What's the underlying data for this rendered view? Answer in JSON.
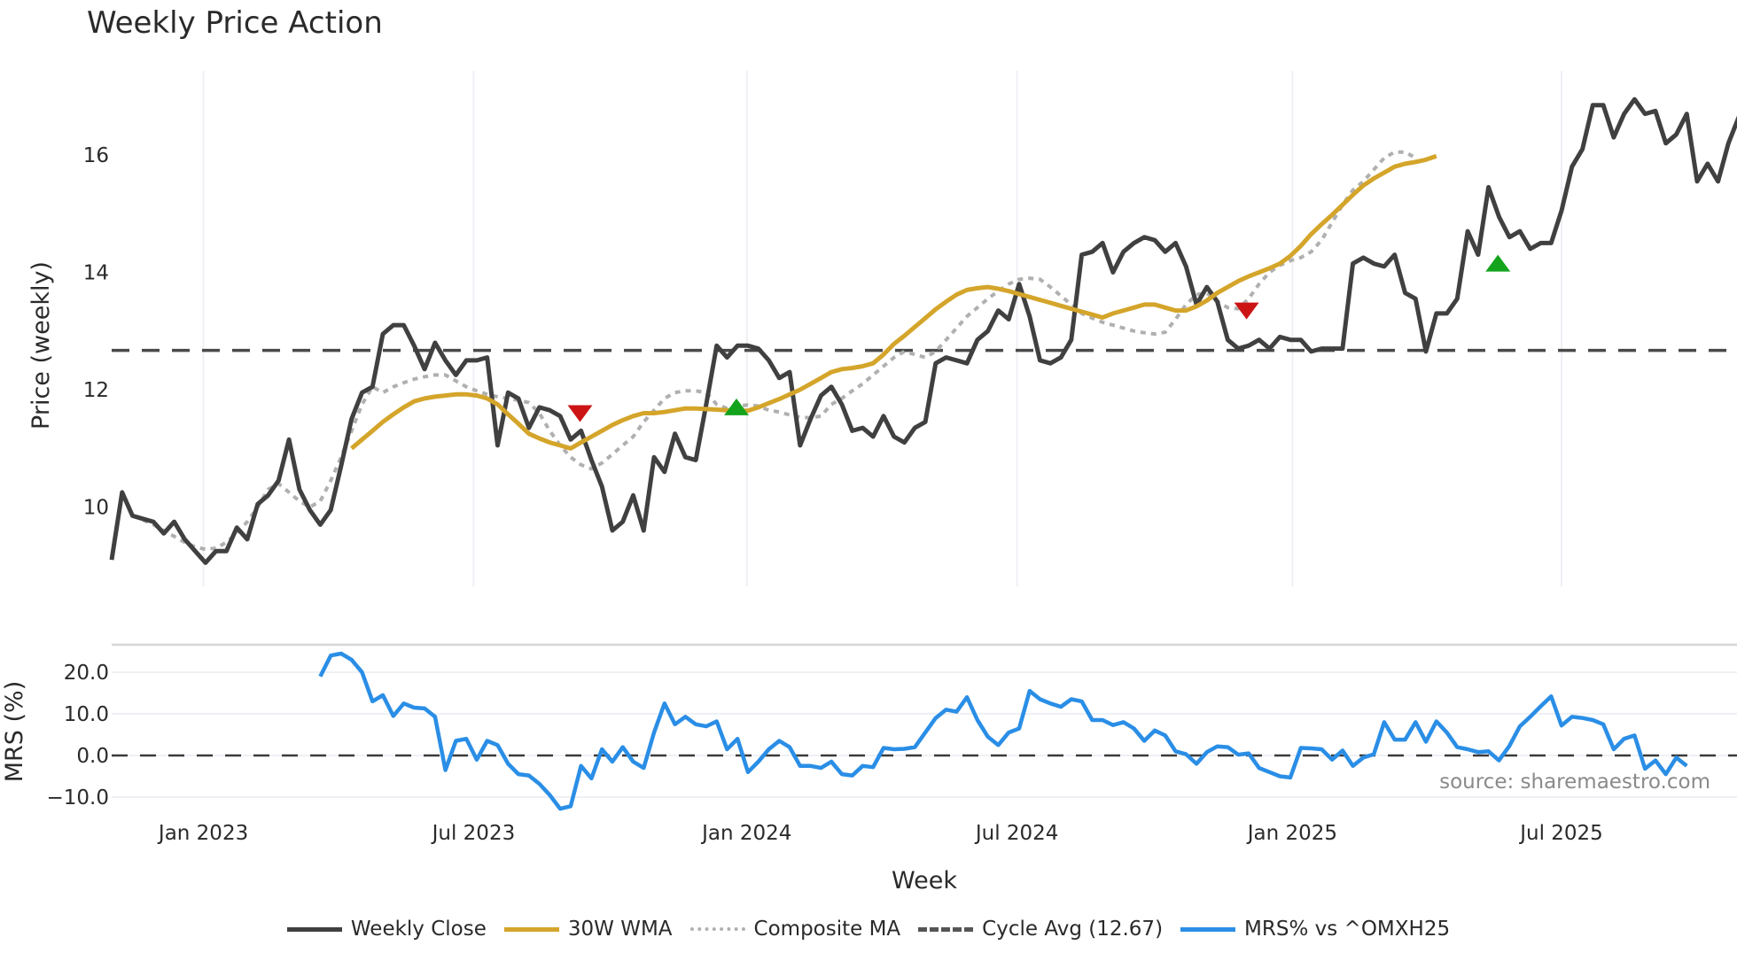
{
  "title": "Weekly Price Action",
  "price_panel": {
    "ylabel": "Price (weekly)",
    "yticks": [
      10,
      12,
      14,
      16
    ],
    "ylim": [
      8.85,
      17.4
    ]
  },
  "mrs_panel": {
    "ylabel": "MRS (%)",
    "yticks": [
      "20.0",
      "10.0",
      "0.0",
      "−10.0"
    ],
    "ytick_values": [
      20,
      10,
      0,
      -10
    ]
  },
  "xaxis": {
    "title": "Week",
    "ticks": [
      {
        "label": "Jan 2023",
        "week": 8.8
      },
      {
        "label": "Jul 2023",
        "week": 34.7
      },
      {
        "label": "Jan 2024",
        "week": 60.9
      },
      {
        "label": "Jul 2024",
        "week": 86.8
      },
      {
        "label": "Jan 2025",
        "week": 113.2
      },
      {
        "label": "Jul 2025",
        "week": 139.0
      }
    ]
  },
  "source": "source: sharemaestro.com",
  "legend": [
    {
      "label": "Weekly Close",
      "style": "solid",
      "color": "#404040"
    },
    {
      "label": "30W WMA",
      "style": "solid",
      "color": "#d4a52a"
    },
    {
      "label": "Composite MA",
      "style": "dotted",
      "color": "#b0b0b0"
    },
    {
      "label": "Cycle Avg (12.67)",
      "style": "dashed",
      "color": "#555555"
    },
    {
      "label": "MRS% vs ^OMXH25",
      "style": "solid",
      "color": "#2a8ee6"
    }
  ],
  "colors": {
    "close": "#404040",
    "wma": "#d4a52a",
    "composite": "#b0b0b0",
    "cycle": "#4a4a4a",
    "mrs": "#2a8ee6",
    "buy": "#14a31c",
    "sell": "#cc1414",
    "grid": "#eef0f4"
  },
  "chart_data": {
    "type": "line",
    "title": "Weekly Price Action",
    "xlabel": "Week",
    "ylabel": "Price (weekly)",
    "cycle_avg": 12.67,
    "series": [
      {
        "name": "Weekly Close",
        "start_week": 0,
        "values": [
          9.1,
          10.25,
          9.85,
          9.8,
          9.75,
          9.55,
          9.75,
          9.45,
          9.25,
          9.05,
          9.25,
          9.25,
          9.65,
          9.45,
          10.05,
          10.2,
          10.45,
          11.15,
          10.3,
          9.95,
          9.7,
          9.95,
          10.7,
          11.5,
          11.95,
          12.05,
          12.95,
          13.1,
          13.1,
          12.75,
          12.35,
          12.8,
          12.5,
          12.25,
          12.5,
          12.5,
          12.55,
          11.05,
          11.95,
          11.85,
          11.35,
          11.7,
          11.65,
          11.55,
          11.15,
          11.3,
          10.8,
          10.35,
          9.6,
          9.75,
          10.2,
          9.6,
          10.85,
          10.6,
          11.25,
          10.85,
          10.8,
          11.75,
          12.75,
          12.55,
          12.75,
          12.75,
          12.7,
          12.5,
          12.2,
          12.3,
          11.05,
          11.5,
          11.9,
          12.05,
          11.75,
          11.3,
          11.35,
          11.2,
          11.55,
          11.2,
          11.1,
          11.35,
          11.45,
          12.45,
          12.55,
          12.5,
          12.45,
          12.85,
          13.0,
          13.35,
          13.2,
          13.8,
          13.25,
          12.5,
          12.45,
          12.55,
          12.85,
          14.3,
          14.35,
          14.5,
          14.0,
          14.35,
          14.5,
          14.6,
          14.55,
          14.35,
          14.5,
          14.1,
          13.45,
          13.75,
          13.5,
          12.85,
          12.7,
          12.75,
          12.85,
          12.7,
          12.9,
          12.85,
          12.85,
          12.65,
          12.7,
          12.7,
          12.7,
          14.15,
          14.25,
          14.15,
          14.1,
          14.3,
          13.65,
          13.55,
          12.65,
          13.3,
          13.3,
          13.55,
          14.7,
          14.3,
          15.45,
          14.95,
          14.6,
          14.7,
          14.4,
          14.5,
          14.5,
          15.05,
          15.8,
          16.1,
          16.85,
          16.85,
          16.3,
          16.7,
          16.95,
          16.7,
          16.75,
          16.2,
          16.35,
          16.7,
          15.55,
          15.85,
          15.55,
          16.2,
          16.65
        ]
      },
      {
        "name": "30W WMA",
        "start_week": 23,
        "values": [
          11.0,
          11.15,
          11.3,
          11.45,
          11.58,
          11.7,
          11.8,
          11.85,
          11.88,
          11.9,
          11.92,
          11.92,
          11.9,
          11.85,
          11.75,
          11.58,
          11.42,
          11.25,
          11.17,
          11.1,
          11.05,
          11.0,
          11.1,
          11.2,
          11.3,
          11.4,
          11.48,
          11.55,
          11.6,
          11.6,
          11.62,
          11.65,
          11.68,
          11.68,
          11.67,
          11.66,
          11.65,
          11.64,
          11.64,
          11.7,
          11.77,
          11.84,
          11.92,
          12.0,
          12.1,
          12.2,
          12.3,
          12.35,
          12.37,
          12.4,
          12.45,
          12.6,
          12.78,
          12.92,
          13.07,
          13.22,
          13.37,
          13.5,
          13.62,
          13.7,
          13.73,
          13.75,
          13.72,
          13.68,
          13.63,
          13.58,
          13.53,
          13.48,
          13.43,
          13.38,
          13.33,
          13.28,
          13.23,
          13.3,
          13.35,
          13.4,
          13.45,
          13.45,
          13.4,
          13.35,
          13.35,
          13.42,
          13.52,
          13.65,
          13.75,
          13.85,
          13.93,
          14.0,
          14.07,
          14.15,
          14.28,
          14.45,
          14.65,
          14.82,
          14.98,
          15.15,
          15.32,
          15.48,
          15.6,
          15.7,
          15.8,
          15.85,
          15.88,
          15.92,
          15.98
        ]
      },
      {
        "name": "Composite MA",
        "start_week": 3,
        "values": [
          9.78,
          9.7,
          9.6,
          9.5,
          9.4,
          9.32,
          9.28,
          9.3,
          9.4,
          9.55,
          9.75,
          10.0,
          10.3,
          10.4,
          10.25,
          10.1,
          10.0,
          10.1,
          10.45,
          10.85,
          11.3,
          11.75,
          12.05,
          11.95,
          12.05,
          12.12,
          12.18,
          12.22,
          12.25,
          12.25,
          12.15,
          12.05,
          11.98,
          11.92,
          11.88,
          11.85,
          11.82,
          11.78,
          11.6,
          11.3,
          11.05,
          10.85,
          10.72,
          10.65,
          10.75,
          10.9,
          11.05,
          11.2,
          11.45,
          11.65,
          11.85,
          11.95,
          11.98,
          11.98,
          11.95,
          11.75,
          11.68,
          11.72,
          11.74,
          11.72,
          11.65,
          11.62,
          11.57,
          11.53,
          11.52,
          11.55,
          11.75,
          11.85,
          11.98,
          12.1,
          12.25,
          12.4,
          12.55,
          12.65,
          12.6,
          12.55,
          12.65,
          12.85,
          13.05,
          13.25,
          13.4,
          13.55,
          13.68,
          13.8,
          13.88,
          13.9,
          13.88,
          13.75,
          13.6,
          13.45,
          13.3,
          13.22,
          13.15,
          13.1,
          13.05,
          13.0,
          12.97,
          12.95,
          12.98,
          13.2,
          13.45,
          13.62,
          13.65,
          13.5,
          13.4,
          13.38,
          13.55,
          13.8,
          14.0,
          14.12,
          14.2,
          14.25,
          14.35,
          14.55,
          14.85,
          15.15,
          15.4,
          15.55,
          15.75,
          15.95,
          16.05,
          16.05,
          15.95
        ]
      },
      {
        "name": "Cycle Avg (12.67)",
        "value": 12.67
      }
    ],
    "signals": [
      {
        "type": "sell",
        "week": 44.9,
        "price": 11.6
      },
      {
        "type": "buy",
        "week": 59.9,
        "price": 11.7
      },
      {
        "type": "sell",
        "week": 108.8,
        "price": 13.35
      },
      {
        "type": "buy",
        "week": 132.9,
        "price": 14.15
      }
    ],
    "mrs": {
      "name": "MRS% vs ^OMXH25",
      "start_week": 20,
      "values": [
        19,
        24,
        24.5,
        23,
        20,
        13,
        14.5,
        9.5,
        12.5,
        11.5,
        11.3,
        9.3,
        -3.5,
        3.5,
        4,
        -1,
        3.5,
        2.5,
        -2,
        -4.5,
        -4.8,
        -6.8,
        -9.5,
        -12.8,
        -12.2,
        -2.5,
        -5.5,
        1.5,
        -1.5,
        2,
        -1.5,
        -3,
        5.5,
        12.5,
        7.5,
        9.3,
        7.5,
        7,
        8.2,
        1.5,
        4,
        -4,
        -1.5,
        1.5,
        3.5,
        2,
        -2.5,
        -2.5,
        -3,
        -1.5,
        -4.5,
        -4.8,
        -2.5,
        -2.8,
        1.8,
        1.5,
        1.6,
        2,
        5.5,
        9,
        11,
        10.5,
        14,
        8.5,
        4.5,
        2.5,
        5.5,
        6.5,
        15.5,
        13.5,
        12.5,
        11.7,
        13.5,
        13,
        8.5,
        8.5,
        7.3,
        8,
        6.5,
        3.5,
        6,
        4.8,
        1,
        0.3,
        -2,
        0.8,
        2.2,
        2,
        0.2,
        0.5,
        -3,
        -4,
        -5,
        -5.3,
        1.8,
        1.7,
        1.5,
        -1,
        1.2,
        -2.5,
        -0.5,
        0.3,
        8,
        3.8,
        3.8,
        8,
        3.3,
        8.2,
        5.5,
        2,
        1.5,
        0.8,
        1,
        -1.2,
        2.3,
        7,
        9.3,
        11.8,
        14.2,
        7.2,
        9.3,
        9,
        8.5,
        7.5,
        1.5,
        4,
        4.8,
        -3.2,
        -1.2,
        -4.5,
        -0.5,
        -2.5
      ]
    }
  }
}
